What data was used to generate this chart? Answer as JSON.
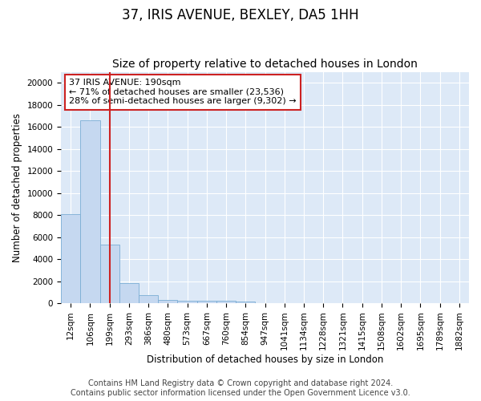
{
  "title": "37, IRIS AVENUE, BEXLEY, DA5 1HH",
  "subtitle": "Size of property relative to detached houses in London",
  "xlabel": "Distribution of detached houses by size in London",
  "ylabel": "Number of detached properties",
  "categories": [
    "12sqm",
    "106sqm",
    "199sqm",
    "293sqm",
    "386sqm",
    "480sqm",
    "573sqm",
    "667sqm",
    "760sqm",
    "854sqm",
    "947sqm",
    "1041sqm",
    "1134sqm",
    "1228sqm",
    "1321sqm",
    "1415sqm",
    "1508sqm",
    "1602sqm",
    "1695sqm",
    "1789sqm",
    "1882sqm"
  ],
  "values": [
    8100,
    16600,
    5300,
    1850,
    750,
    300,
    230,
    220,
    210,
    160,
    0,
    0,
    0,
    0,
    0,
    0,
    0,
    0,
    0,
    0,
    0
  ],
  "bar_color": "#c5d8f0",
  "bar_edge_color": "#7badd4",
  "vline_x_index": 2,
  "vline_color": "#cc2222",
  "annotation_text": "37 IRIS AVENUE: 190sqm\n← 71% of detached houses are smaller (23,536)\n28% of semi-detached houses are larger (9,302) →",
  "annotation_box_facecolor": "#ffffff",
  "annotation_box_edgecolor": "#cc2222",
  "ylim": [
    0,
    21000
  ],
  "yticks": [
    0,
    2000,
    4000,
    6000,
    8000,
    10000,
    12000,
    14000,
    16000,
    18000,
    20000
  ],
  "footer": "Contains HM Land Registry data © Crown copyright and database right 2024.\nContains public sector information licensed under the Open Government Licence v3.0.",
  "fig_facecolor": "#ffffff",
  "ax_facecolor": "#dde9f7",
  "grid_color": "#ffffff",
  "title_fontsize": 12,
  "subtitle_fontsize": 10,
  "axis_label_fontsize": 8.5,
  "tick_fontsize": 7.5,
  "annotation_fontsize": 8,
  "footer_fontsize": 7
}
